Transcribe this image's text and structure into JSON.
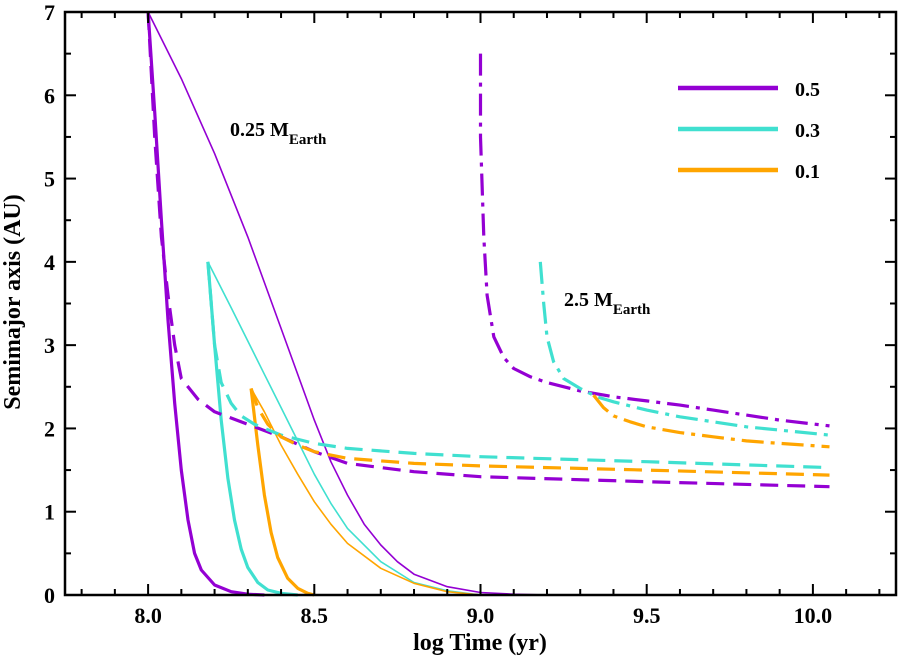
{
  "chart_data": {
    "type": "line",
    "title": "",
    "xlabel": "log Time (yr)",
    "ylabel": "Semimajor axis (AU)",
    "xlim": [
      7.75,
      10.25
    ],
    "ylim": [
      0,
      7
    ],
    "x_ticks": [
      8.0,
      8.5,
      9.0,
      9.5,
      10.0
    ],
    "x_tick_labels": [
      "8.0",
      "8.5",
      "9.0",
      "9.5",
      "10.0"
    ],
    "y_ticks": [
      0,
      1,
      2,
      3,
      4,
      5,
      6,
      7
    ],
    "y_tick_labels": [
      "0",
      "1",
      "2",
      "3",
      "4",
      "5",
      "6",
      "7"
    ],
    "legend": {
      "placement": "top-right",
      "entries": [
        {
          "label": "0.5",
          "color": "#9400D3"
        },
        {
          "label": "0.3",
          "color": "#40E0D0"
        },
        {
          "label": "0.1",
          "color": "#FFA500"
        }
      ]
    },
    "annotations": [
      {
        "main": "0.25 M",
        "sub": "Earth",
        "x": 8.25,
        "y": 5.5
      },
      {
        "main": "2.5 M",
        "sub": "Earth",
        "x": 9.25,
        "y": 3.45
      }
    ],
    "series": [
      {
        "name": "0.5 solid thin upper",
        "color": "#9400D3",
        "style": "solid",
        "width": "thin",
        "x": [
          8.0,
          8.1,
          8.2,
          8.3,
          8.4,
          8.5,
          8.55,
          8.6,
          8.65,
          8.7,
          8.75,
          8.8,
          8.9,
          9.0,
          9.1,
          9.2
        ],
        "y": [
          7.0,
          6.2,
          5.3,
          4.3,
          3.2,
          2.1,
          1.6,
          1.2,
          0.85,
          0.6,
          0.4,
          0.25,
          0.1,
          0.03,
          0.01,
          0.0
        ]
      },
      {
        "name": "0.5 solid thick lower",
        "color": "#9400D3",
        "style": "solid",
        "width": "thick",
        "x": [
          8.0,
          8.02,
          8.04,
          8.06,
          8.08,
          8.1,
          8.12,
          8.14,
          8.16,
          8.2,
          8.25,
          8.3,
          8.35
        ],
        "y": [
          7.0,
          5.8,
          4.5,
          3.3,
          2.3,
          1.5,
          0.9,
          0.5,
          0.3,
          0.12,
          0.04,
          0.01,
          0.0
        ]
      },
      {
        "name": "0.3 solid thin upper",
        "color": "#40E0D0",
        "style": "solid",
        "width": "thin",
        "x": [
          8.18,
          8.25,
          8.3,
          8.35,
          8.4,
          8.45,
          8.5,
          8.55,
          8.6,
          8.7,
          8.8,
          8.9,
          9.0
        ],
        "y": [
          4.0,
          3.45,
          3.05,
          2.65,
          2.25,
          1.85,
          1.45,
          1.1,
          0.8,
          0.4,
          0.15,
          0.05,
          0.0
        ]
      },
      {
        "name": "0.3 solid thick lower",
        "color": "#40E0D0",
        "style": "solid",
        "width": "thick",
        "x": [
          8.18,
          8.2,
          8.22,
          8.24,
          8.26,
          8.28,
          8.3,
          8.33,
          8.36,
          8.4,
          8.45
        ],
        "y": [
          4.0,
          3.0,
          2.1,
          1.4,
          0.9,
          0.55,
          0.33,
          0.15,
          0.06,
          0.02,
          0.0
        ]
      },
      {
        "name": "0.1 solid thin upper",
        "color": "#FFA500",
        "style": "solid",
        "width": "thin",
        "x": [
          8.31,
          8.35,
          8.4,
          8.45,
          8.5,
          8.55,
          8.6,
          8.7,
          8.8,
          8.9,
          9.0
        ],
        "y": [
          2.48,
          2.2,
          1.8,
          1.45,
          1.12,
          0.85,
          0.62,
          0.32,
          0.14,
          0.04,
          0.0
        ]
      },
      {
        "name": "0.1 solid thick lower",
        "color": "#FFA500",
        "style": "solid",
        "width": "thick",
        "x": [
          8.31,
          8.33,
          8.35,
          8.37,
          8.39,
          8.42,
          8.45,
          8.48,
          8.5
        ],
        "y": [
          2.48,
          1.8,
          1.2,
          0.75,
          0.45,
          0.2,
          0.08,
          0.02,
          0.0
        ]
      },
      {
        "name": "0.5 dashed 0.25 M_Earth",
        "color": "#9400D3",
        "style": "dashed",
        "width": "thick",
        "x": [
          8.0,
          8.02,
          8.04,
          8.06,
          8.08,
          8.1,
          8.15,
          8.2,
          8.3,
          8.4,
          8.5,
          8.6,
          8.8,
          9.0,
          9.5,
          10.05
        ],
        "y": [
          7.0,
          5.5,
          4.3,
          3.6,
          3.0,
          2.6,
          2.35,
          2.2,
          2.05,
          1.9,
          1.72,
          1.58,
          1.48,
          1.42,
          1.36,
          1.3
        ]
      },
      {
        "name": "0.3 dashed 0.25 M_Earth",
        "color": "#40E0D0",
        "style": "dashed",
        "width": "thick",
        "x": [
          8.18,
          8.2,
          8.22,
          8.25,
          8.28,
          8.32,
          8.4,
          8.5,
          8.6,
          8.8,
          9.0,
          9.5,
          10.05
        ],
        "y": [
          4.0,
          3.0,
          2.55,
          2.3,
          2.15,
          2.05,
          1.92,
          1.82,
          1.76,
          1.7,
          1.66,
          1.6,
          1.53
        ]
      },
      {
        "name": "0.1 dashed 0.25 M_Earth",
        "color": "#FFA500",
        "style": "dashed",
        "width": "thick",
        "x": [
          8.31,
          8.33,
          8.36,
          8.4,
          8.45,
          8.5,
          8.6,
          8.8,
          9.0,
          9.5,
          10.05
        ],
        "y": [
          2.48,
          2.25,
          2.05,
          1.9,
          1.8,
          1.72,
          1.64,
          1.58,
          1.55,
          1.5,
          1.44
        ]
      },
      {
        "name": "0.5 dash-dot 2.5 M_Earth",
        "color": "#9400D3",
        "style": "dashdot",
        "width": "thick",
        "x": [
          9.0,
          9.0,
          9.01,
          9.02,
          9.04,
          9.07,
          9.1,
          9.15,
          9.2,
          9.3,
          9.4,
          9.5,
          9.6,
          9.7,
          9.8,
          9.9,
          10.05
        ],
        "y": [
          6.5,
          5.5,
          4.3,
          3.6,
          3.1,
          2.85,
          2.72,
          2.62,
          2.55,
          2.45,
          2.38,
          2.33,
          2.28,
          2.22,
          2.16,
          2.1,
          2.03
        ]
      },
      {
        "name": "0.3 dash-dot 2.5 M_Earth",
        "color": "#40E0D0",
        "style": "dashdot",
        "width": "thick",
        "x": [
          9.18,
          9.19,
          9.2,
          9.22,
          9.25,
          9.3,
          9.35,
          9.4,
          9.5,
          9.6,
          9.7,
          9.8,
          9.9,
          10.05
        ],
        "y": [
          4.0,
          3.5,
          3.1,
          2.8,
          2.6,
          2.48,
          2.38,
          2.32,
          2.22,
          2.14,
          2.08,
          2.02,
          1.98,
          1.92
        ]
      },
      {
        "name": "0.1 dash-dot 2.5 M_Earth",
        "color": "#FFA500",
        "style": "dashdot",
        "width": "thick",
        "x": [
          9.34,
          9.37,
          9.4,
          9.45,
          9.5,
          9.6,
          9.7,
          9.8,
          9.9,
          10.05
        ],
        "y": [
          2.4,
          2.25,
          2.15,
          2.08,
          2.02,
          1.95,
          1.9,
          1.85,
          1.82,
          1.78
        ]
      }
    ]
  }
}
